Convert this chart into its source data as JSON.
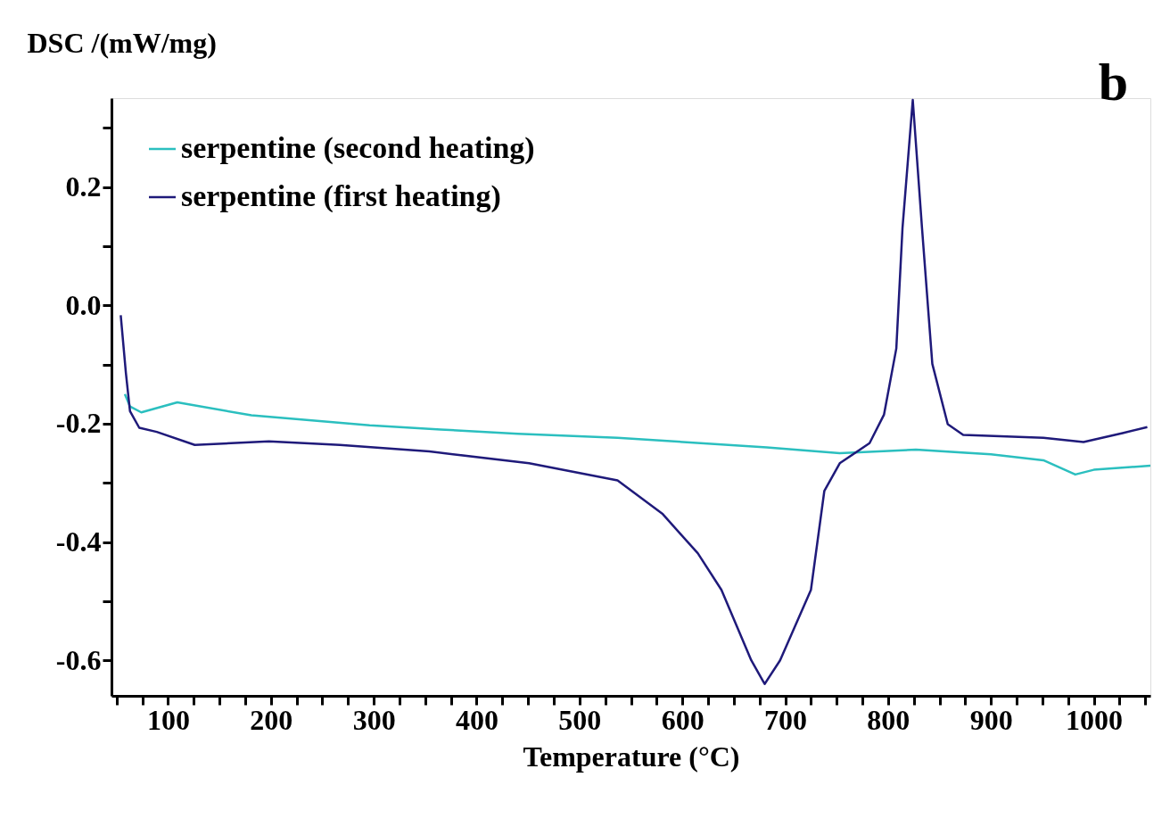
{
  "chart_data": {
    "type": "line",
    "xlabel": "Temperature (°C)",
    "ylabel": "DSC /(mW/mg)",
    "annotations": [
      "b"
    ],
    "xlim": [
      45,
      1055
    ],
    "ylim": [
      -0.66,
      0.35
    ],
    "xticks": [
      {
        "value": 50,
        "label": null
      },
      {
        "value": 75,
        "label": null
      },
      100,
      {
        "value": 125,
        "label": null
      },
      {
        "value": 150,
        "label": null
      },
      {
        "value": 175,
        "label": null
      },
      200,
      {
        "value": 225,
        "label": null
      },
      {
        "value": 250,
        "label": null
      },
      {
        "value": 275,
        "label": null
      },
      300,
      {
        "value": 325,
        "label": null
      },
      {
        "value": 350,
        "label": null
      },
      {
        "value": 375,
        "label": null
      },
      400,
      {
        "value": 425,
        "label": null
      },
      {
        "value": 450,
        "label": null
      },
      {
        "value": 475,
        "label": null
      },
      500,
      {
        "value": 525,
        "label": null
      },
      {
        "value": 550,
        "label": null
      },
      {
        "value": 575,
        "label": null
      },
      600,
      {
        "value": 625,
        "label": null
      },
      {
        "value": 650,
        "label": null
      },
      {
        "value": 675,
        "label": null
      },
      700,
      {
        "value": 725,
        "label": null
      },
      {
        "value": 750,
        "label": null
      },
      {
        "value": 775,
        "label": null
      },
      800,
      {
        "value": 825,
        "label": null
      },
      {
        "value": 850,
        "label": null
      },
      {
        "value": 875,
        "label": null
      },
      900,
      {
        "value": 925,
        "label": null
      },
      {
        "value": 950,
        "label": null
      },
      {
        "value": 975,
        "label": null
      },
      1000,
      {
        "value": 1025,
        "label": null
      },
      {
        "value": 1050,
        "label": null
      }
    ],
    "yticks": [
      {
        "value": -0.6,
        "label": "-0.6"
      },
      {
        "value": -0.5,
        "label": null
      },
      {
        "value": -0.4,
        "label": "-0.4"
      },
      {
        "value": -0.3,
        "label": null
      },
      {
        "value": -0.2,
        "label": "-0.2"
      },
      {
        "value": -0.1,
        "label": null
      },
      {
        "value": 0,
        "label": "0.0"
      },
      {
        "value": 0.1,
        "label": null
      },
      {
        "value": 0.2,
        "label": "0.2"
      },
      {
        "value": 0.3,
        "label": null
      }
    ],
    "grid": false,
    "legend": "top left",
    "line_style": "solid",
    "series": [
      {
        "name": "serpentine (second heating)",
        "color": "#2bbfbf",
        "x": [
          58,
          63,
          74,
          109,
          181,
          296,
          365,
          440,
          537,
          682,
          753,
          827,
          900,
          951,
          982,
          1000,
          1055
        ],
        "values": [
          -0.15,
          -0.171,
          -0.181,
          -0.164,
          -0.186,
          -0.203,
          -0.21,
          -0.217,
          -0.224,
          -0.24,
          -0.25,
          -0.244,
          -0.252,
          -0.262,
          -0.286,
          -0.278,
          -0.271
        ]
      },
      {
        "name": "serpentine (first heating)",
        "color": "#1f1a7a",
        "x": [
          54,
          59,
          63,
          72,
          89,
          126,
          198,
          267,
          354,
          451,
          537,
          581,
          615,
          638,
          667,
          680,
          695,
          725,
          738,
          753,
          782,
          796,
          808,
          814,
          824,
          833,
          843,
          858,
          873,
          951,
          990,
          1028,
          1052
        ],
        "values": [
          -0.017,
          -0.114,
          -0.179,
          -0.207,
          -0.214,
          -0.236,
          -0.23,
          -0.236,
          -0.247,
          -0.267,
          -0.296,
          -0.353,
          -0.419,
          -0.481,
          -0.6,
          -0.64,
          -0.6,
          -0.481,
          -0.314,
          -0.267,
          -0.233,
          -0.185,
          -0.073,
          0.13,
          0.347,
          0.13,
          -0.099,
          -0.201,
          -0.219,
          -0.224,
          -0.231,
          -0.216,
          -0.206
        ]
      }
    ]
  }
}
